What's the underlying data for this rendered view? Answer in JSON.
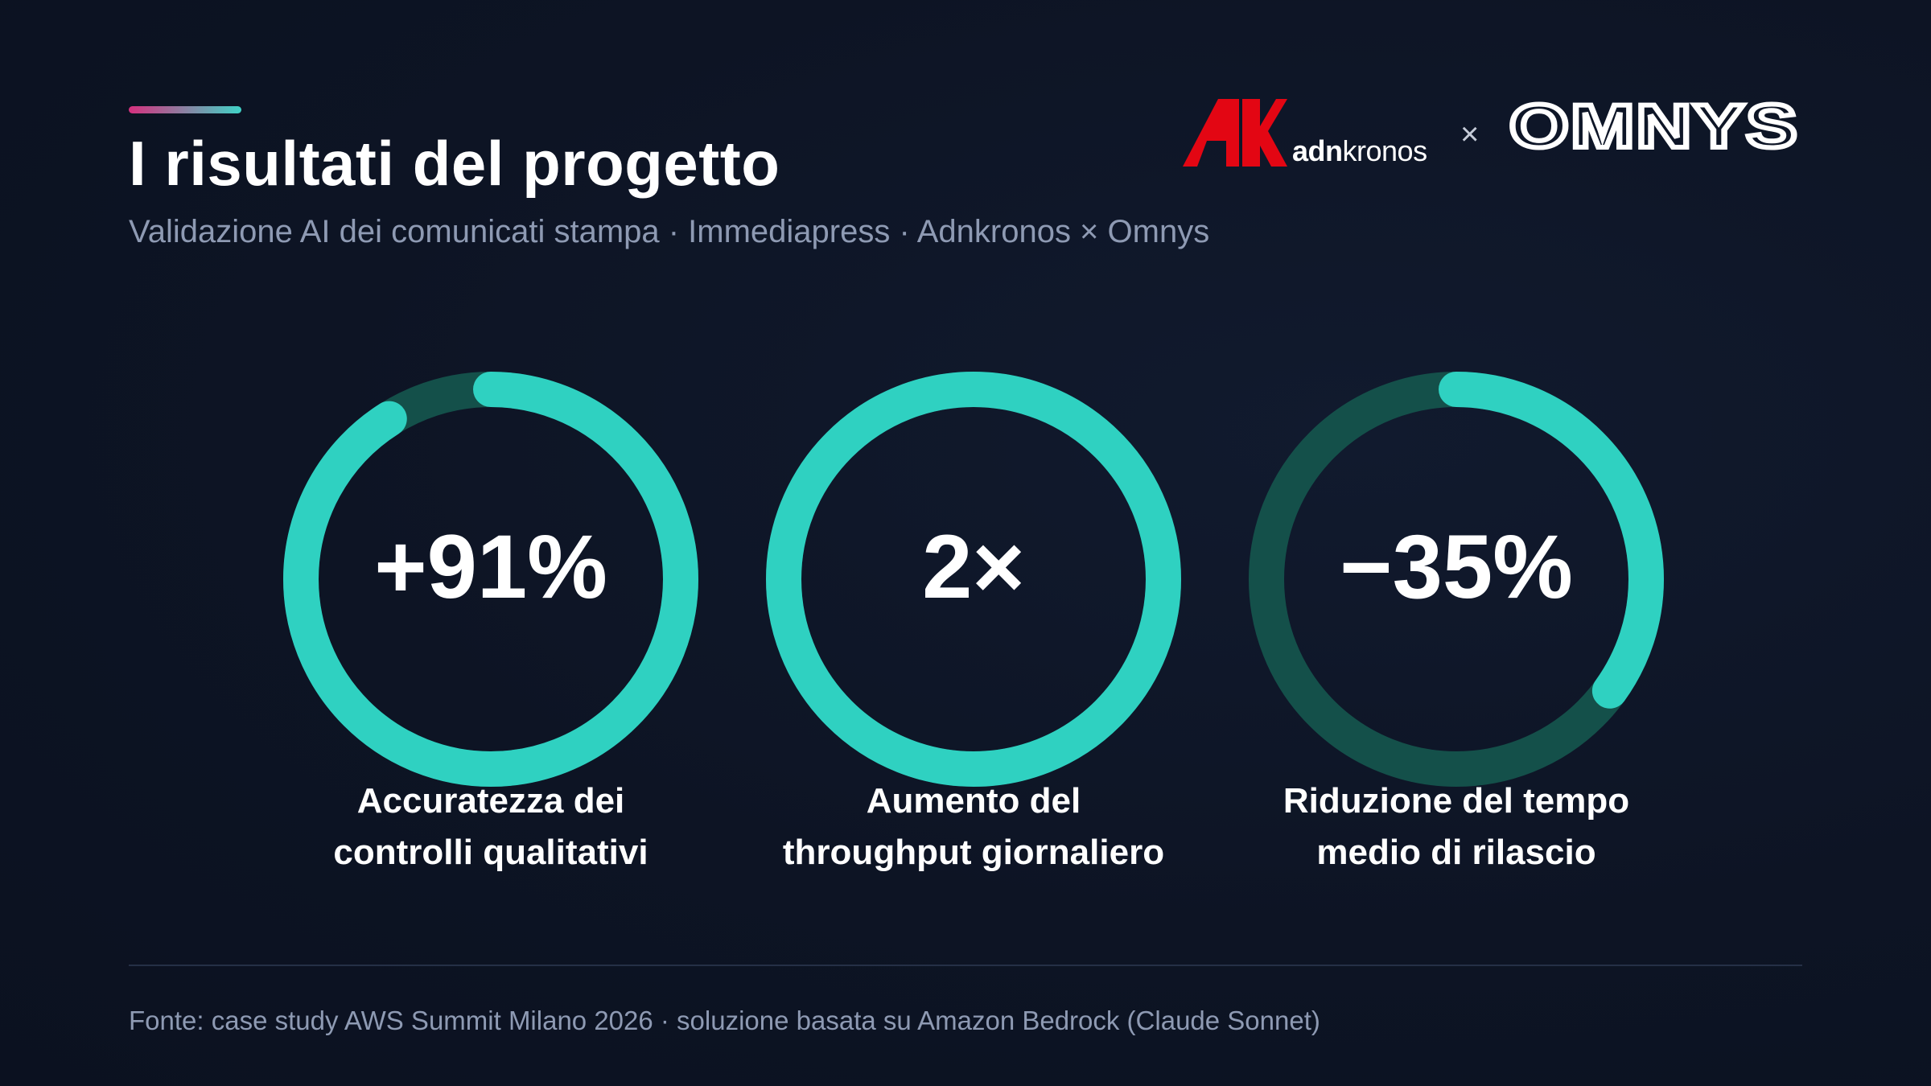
{
  "colors": {
    "background": "#0d1424",
    "accent_gradient_start": "#d6307e",
    "accent_gradient_end": "#3fd3c7",
    "ring_fill": "#2fd1c1",
    "ring_track": "#14504a",
    "logo_red": "#e30613",
    "text_muted": "#8e9ab3"
  },
  "header": {
    "title": "I risultati del progetto",
    "subtitle": "Validazione AI dei comunicati stampa · Immediapress · Adnkronos × Omnys"
  },
  "logos": {
    "adnkronos_bold": "adn",
    "adnkronos_light": "kronos",
    "times": "×",
    "omnys": "OMNYS"
  },
  "metrics": [
    {
      "value": "+91%",
      "label_line1": "Accuratezza dei",
      "label_line2": "controlli qualitativi",
      "fill_fraction": 0.91
    },
    {
      "value": "2×",
      "label_line1": "Aumento del",
      "label_line2": "throughput giornaliero",
      "fill_fraction": 1.0
    },
    {
      "value": "−35%",
      "label_line1": "Riduzione del tempo",
      "label_line2": "medio di rilascio",
      "fill_fraction": 0.35
    }
  ],
  "footer": {
    "source": "Fonte: case study AWS Summit Milano 2026 · soluzione basata su Amazon Bedrock (Claude Sonnet)"
  }
}
